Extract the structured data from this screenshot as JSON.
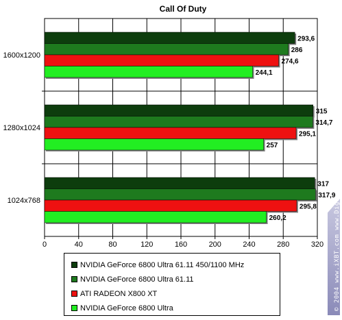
{
  "chart_data": {
    "type": "bar",
    "orientation": "horizontal",
    "title": "Call Of Duty",
    "categories": [
      "1600x1200",
      "1280x1024",
      "1024x768"
    ],
    "series": [
      {
        "name": "NVIDIA GeForce 6800 Ultra 61.11 450/1100 MHz",
        "color": "#0d3d0d",
        "values": [
          293.6,
          315,
          317
        ],
        "labels": [
          "293,6",
          "315",
          "317"
        ]
      },
      {
        "name": "NVIDIA GeForce 6800 Ultra 61.11",
        "color": "#1e7a1e",
        "values": [
          286,
          314.7,
          317.9
        ],
        "labels": [
          "286",
          "314,7",
          "317,9"
        ]
      },
      {
        "name": "ATI RADEON X800 XT",
        "color": "#ee1111",
        "values": [
          274.6,
          295.1,
          295.8
        ],
        "labels": [
          "274,6",
          "295,1",
          "295,8"
        ]
      },
      {
        "name": "NVIDIA GeForce 6800 Ultra",
        "color": "#22ee22",
        "values": [
          244.1,
          257,
          260.2
        ],
        "labels": [
          "244,1",
          "257",
          "260,2"
        ]
      }
    ],
    "xlim": [
      0,
      320
    ],
    "xticks": [
      0,
      40,
      80,
      120,
      160,
      200,
      240,
      280,
      320
    ],
    "grid": true,
    "legend_position": "bottom"
  },
  "watermark": "© 2004 www.iXBT.com  www.Digit-Life.com"
}
